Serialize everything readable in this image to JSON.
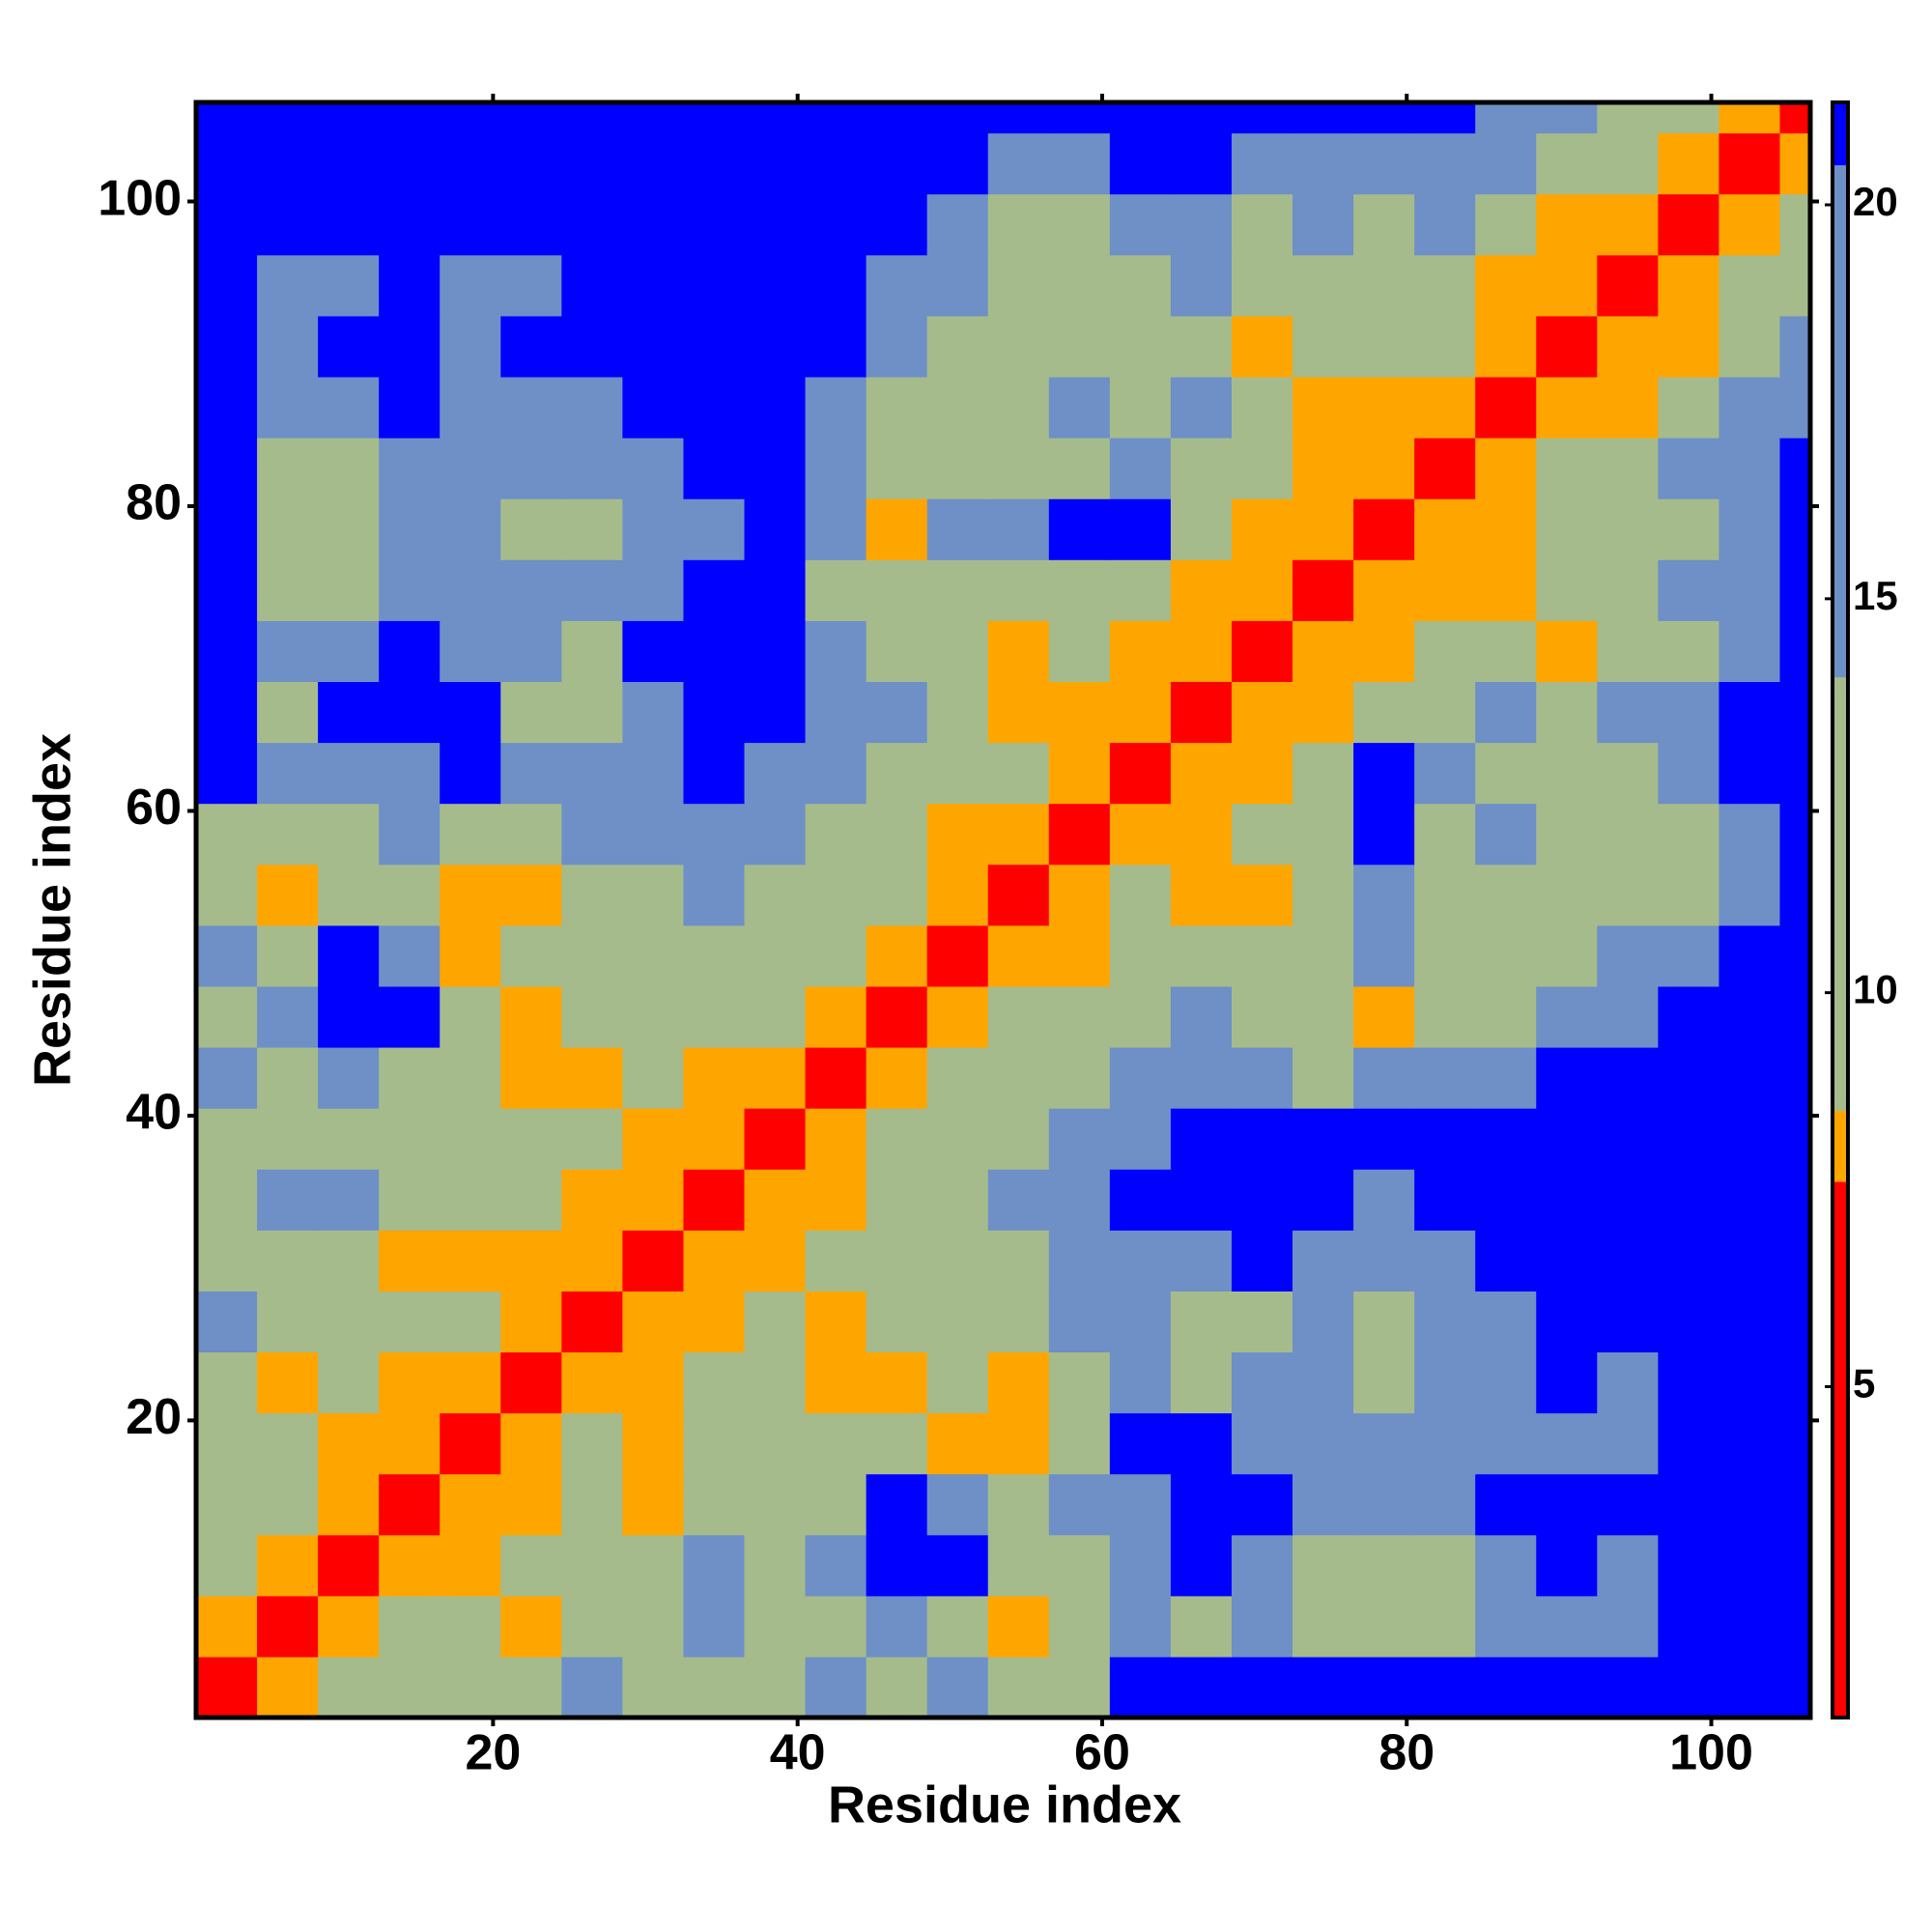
{
  "chart_data": {
    "type": "heatmap",
    "x_label": "Residue index",
    "y_label": "Residue index",
    "xlim": [
      0.5,
      106.5
    ],
    "ylim": [
      0.5,
      106.5
    ],
    "xticks": [
      20,
      40,
      60,
      80,
      100
    ],
    "yticks": [
      20,
      40,
      60,
      80,
      100
    ],
    "bins": [
      0.5,
      4.5,
      8.5,
      12.5,
      16.5,
      20.5,
      24.5,
      28.5,
      32.5,
      36.5,
      40.5,
      44.5,
      48.5,
      52.5,
      56.5,
      60.5,
      64.5,
      68.5,
      72.5,
      76.5,
      80.5,
      84.5,
      88.5,
      92.5,
      96.5,
      100.5,
      104.5,
      106.5
    ],
    "values": [
      [
        4,
        8,
        11,
        11,
        11,
        11,
        16,
        11,
        11,
        11,
        16,
        11,
        16,
        11,
        11,
        21,
        21,
        21,
        21,
        21,
        21,
        21,
        21,
        21,
        21,
        21,
        21
      ],
      [
        8,
        4,
        8,
        11,
        11,
        8,
        11,
        11,
        16,
        11,
        11,
        16,
        11,
        8,
        11,
        16,
        11,
        16,
        11,
        11,
        11,
        16,
        16,
        16,
        21,
        21,
        21
      ],
      [
        11,
        8,
        4,
        8,
        8,
        11,
        11,
        11,
        16,
        11,
        16,
        21,
        21,
        11,
        11,
        16,
        21,
        16,
        11,
        11,
        11,
        16,
        21,
        16,
        21,
        21,
        21
      ],
      [
        11,
        11,
        8,
        4,
        8,
        8,
        11,
        8,
        11,
        11,
        11,
        21,
        16,
        11,
        16,
        16,
        21,
        21,
        16,
        16,
        16,
        21,
        21,
        21,
        21,
        21,
        21
      ],
      [
        11,
        11,
        8,
        8,
        4,
        8,
        11,
        8,
        11,
        11,
        11,
        11,
        8,
        8,
        11,
        21,
        21,
        16,
        16,
        16,
        16,
        16,
        16,
        16,
        21,
        21,
        21
      ],
      [
        11,
        8,
        11,
        8,
        8,
        4,
        8,
        8,
        11,
        11,
        8,
        8,
        11,
        8,
        11,
        16,
        11,
        16,
        16,
        11,
        16,
        16,
        21,
        16,
        21,
        21,
        21
      ],
      [
        16,
        11,
        11,
        11,
        11,
        8,
        4,
        8,
        8,
        11,
        8,
        11,
        11,
        11,
        16,
        16,
        11,
        11,
        16,
        11,
        16,
        16,
        21,
        21,
        21,
        21,
        21
      ],
      [
        11,
        11,
        11,
        8,
        8,
        8,
        8,
        4,
        8,
        8,
        11,
        11,
        11,
        11,
        16,
        16,
        16,
        21,
        16,
        16,
        16,
        21,
        21,
        21,
        21,
        21,
        21
      ],
      [
        11,
        16,
        16,
        11,
        11,
        11,
        8,
        8,
        4,
        8,
        8,
        11,
        11,
        16,
        16,
        21,
        21,
        21,
        21,
        16,
        21,
        21,
        21,
        21,
        21,
        21,
        21
      ],
      [
        11,
        11,
        11,
        11,
        11,
        11,
        11,
        8,
        8,
        4,
        8,
        11,
        11,
        11,
        16,
        16,
        21,
        21,
        21,
        21,
        21,
        21,
        21,
        21,
        21,
        21,
        21
      ],
      [
        16,
        11,
        16,
        11,
        11,
        8,
        8,
        11,
        8,
        8,
        4,
        8,
        11,
        11,
        11,
        16,
        16,
        16,
        11,
        16,
        16,
        16,
        21,
        21,
        21,
        21,
        21
      ],
      [
        11,
        16,
        21,
        21,
        11,
        8,
        11,
        11,
        11,
        11,
        8,
        4,
        8,
        11,
        11,
        11,
        16,
        11,
        11,
        8,
        11,
        11,
        16,
        16,
        21,
        21,
        21
      ],
      [
        16,
        11,
        21,
        16,
        8,
        11,
        11,
        11,
        11,
        11,
        11,
        8,
        4,
        8,
        8,
        11,
        11,
        11,
        11,
        16,
        11,
        11,
        11,
        16,
        16,
        21,
        21
      ],
      [
        11,
        8,
        11,
        11,
        8,
        8,
        11,
        11,
        16,
        11,
        11,
        11,
        8,
        4,
        8,
        11,
        8,
        8,
        11,
        16,
        11,
        11,
        11,
        11,
        11,
        16,
        21
      ],
      [
        11,
        11,
        11,
        16,
        11,
        11,
        16,
        16,
        16,
        16,
        11,
        11,
        8,
        8,
        4,
        8,
        8,
        11,
        11,
        21,
        11,
        16,
        11,
        11,
        11,
        16,
        21
      ],
      [
        21,
        16,
        16,
        16,
        21,
        16,
        16,
        16,
        21,
        16,
        16,
        11,
        11,
        11,
        8,
        4,
        8,
        8,
        11,
        21,
        16,
        11,
        11,
        11,
        16,
        21,
        21
      ],
      [
        21,
        11,
        21,
        21,
        21,
        11,
        11,
        16,
        21,
        21,
        16,
        16,
        11,
        8,
        8,
        8,
        4,
        8,
        8,
        11,
        11,
        16,
        11,
        16,
        16,
        21,
        21
      ],
      [
        21,
        16,
        16,
        21,
        16,
        16,
        11,
        21,
        21,
        21,
        16,
        11,
        11,
        8,
        11,
        8,
        8,
        4,
        8,
        8,
        11,
        11,
        8,
        11,
        11,
        16,
        21
      ],
      [
        21,
        11,
        11,
        16,
        16,
        16,
        16,
        16,
        21,
        21,
        11,
        11,
        11,
        11,
        11,
        11,
        8,
        8,
        4,
        8,
        8,
        8,
        11,
        11,
        16,
        16,
        21
      ],
      [
        21,
        11,
        11,
        16,
        16,
        11,
        11,
        16,
        16,
        21,
        16,
        8,
        16,
        16,
        21,
        21,
        11,
        8,
        8,
        4,
        8,
        8,
        11,
        11,
        11,
        16,
        21
      ],
      [
        21,
        11,
        11,
        16,
        16,
        16,
        16,
        16,
        21,
        21,
        16,
        11,
        11,
        11,
        11,
        16,
        11,
        11,
        8,
        8,
        4,
        8,
        11,
        11,
        16,
        16,
        21
      ],
      [
        21,
        16,
        16,
        21,
        16,
        16,
        16,
        21,
        21,
        21,
        16,
        11,
        11,
        11,
        16,
        11,
        16,
        11,
        8,
        8,
        8,
        4,
        8,
        8,
        11,
        16,
        16
      ],
      [
        21,
        16,
        21,
        21,
        16,
        21,
        21,
        21,
        21,
        21,
        21,
        16,
        11,
        11,
        11,
        11,
        11,
        8,
        11,
        11,
        11,
        8,
        4,
        8,
        8,
        11,
        16
      ],
      [
        21,
        16,
        16,
        21,
        16,
        16,
        21,
        21,
        21,
        21,
        21,
        16,
        16,
        11,
        11,
        11,
        16,
        11,
        11,
        11,
        11,
        8,
        8,
        4,
        8,
        11,
        11
      ],
      [
        21,
        21,
        21,
        21,
        21,
        21,
        21,
        21,
        21,
        21,
        21,
        21,
        16,
        11,
        11,
        16,
        16,
        11,
        16,
        11,
        16,
        11,
        8,
        8,
        4,
        8,
        11
      ],
      [
        21,
        21,
        21,
        21,
        21,
        21,
        21,
        21,
        21,
        21,
        21,
        21,
        21,
        16,
        16,
        21,
        21,
        16,
        16,
        16,
        16,
        16,
        11,
        11,
        8,
        4,
        8
      ],
      [
        21,
        21,
        21,
        21,
        21,
        21,
        21,
        21,
        21,
        21,
        21,
        21,
        21,
        21,
        21,
        21,
        21,
        21,
        21,
        21,
        21,
        16,
        16,
        11,
        11,
        8,
        4
      ]
    ],
    "colorbar": {
      "lim": [
        0.8,
        21.3
      ],
      "ticks": [
        5,
        10,
        15,
        20
      ],
      "bands": [
        {
          "from": 0.8,
          "to": 7.6,
          "color": "#ff0000"
        },
        {
          "from": 7.6,
          "to": 8.5,
          "color": "#ffa500"
        },
        {
          "from": 8.5,
          "to": 14,
          "color": "#a6bb8c"
        },
        {
          "from": 14,
          "to": 20.5,
          "color": "#6e90c6"
        },
        {
          "from": 20.5,
          "to": 21.3,
          "color": "#0000ff"
        }
      ]
    }
  }
}
